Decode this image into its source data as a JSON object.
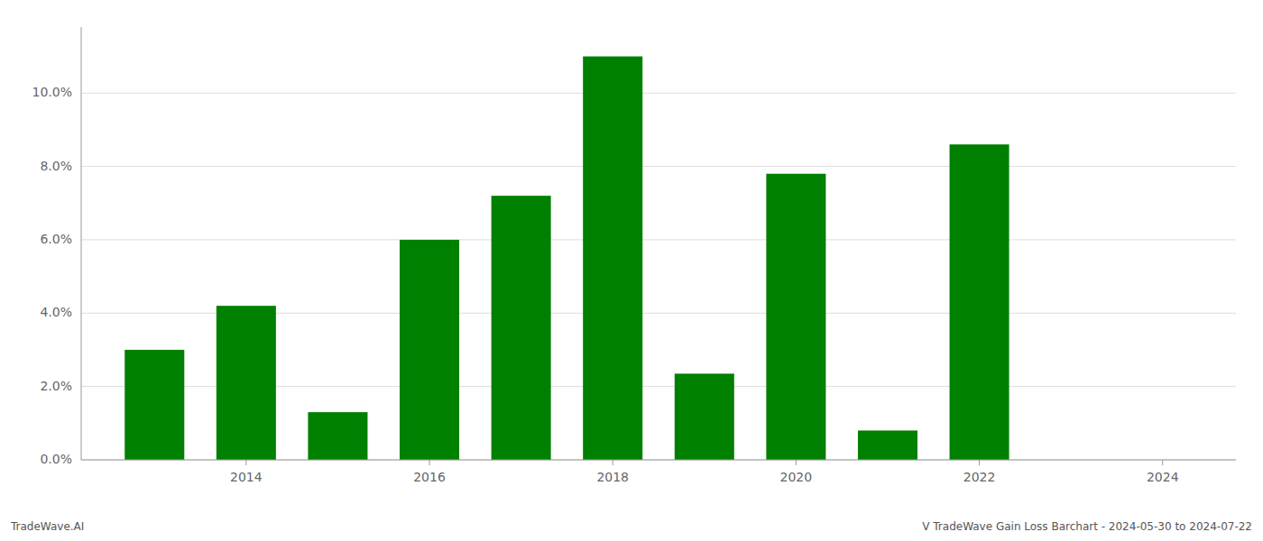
{
  "chart_data": {
    "type": "bar",
    "x": [
      2013,
      2014,
      2015,
      2016,
      2017,
      2018,
      2019,
      2020,
      2021,
      2022,
      2023
    ],
    "values": [
      0.03,
      0.042,
      0.013,
      0.06,
      0.072,
      0.11,
      0.0235,
      0.078,
      0.008,
      0.086,
      0.0
    ],
    "color": "#008000",
    "xlim": [
      2012.2,
      2024.8
    ],
    "xticks": [
      2014,
      2016,
      2018,
      2020,
      2022,
      2024
    ],
    "ylim": [
      0.0,
      0.118
    ],
    "yticks": [
      {
        "value": 0.0,
        "label": "0.0%"
      },
      {
        "value": 0.02,
        "label": "2.0%"
      },
      {
        "value": 0.04,
        "label": "4.0%"
      },
      {
        "value": 0.06,
        "label": "6.0%"
      },
      {
        "value": 0.08,
        "label": "8.0%"
      },
      {
        "value": 0.1,
        "label": "10.0%"
      }
    ],
    "grid": true,
    "annotations": [
      "TradeWave.AI",
      "V TradeWave Gain Loss Barchart - 2024-05-30 to 2024-07-22"
    ]
  }
}
